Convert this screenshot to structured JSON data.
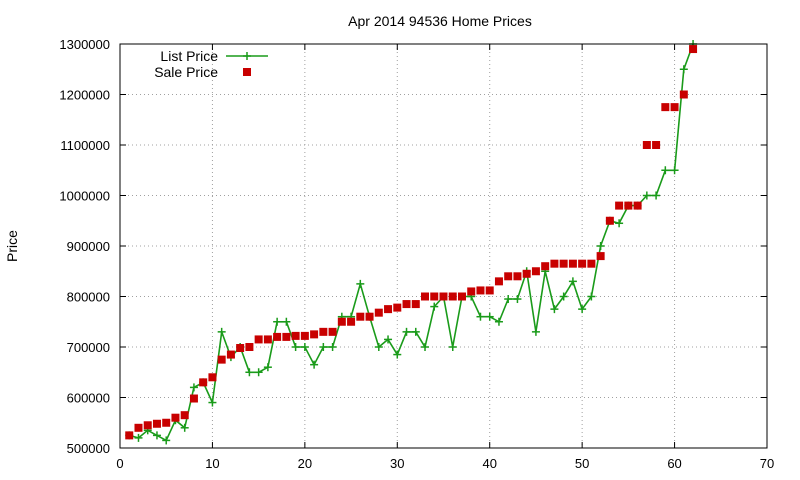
{
  "chart_data": {
    "type": "line",
    "title": "Apr 2014 94536 Home Prices",
    "ylabel": "Price",
    "xlabel": "",
    "xlim": [
      0,
      70
    ],
    "ylim": [
      500000,
      1300000
    ],
    "xticks": [
      0,
      10,
      20,
      30,
      40,
      50,
      60,
      70
    ],
    "yticks": [
      500000,
      600000,
      700000,
      800000,
      900000,
      1000000,
      1100000,
      1200000,
      1300000
    ],
    "grid": true,
    "legend_position": "top-left",
    "series": [
      {
        "name": "List Price",
        "style": "line+plus",
        "color": "#1a9b1a",
        "x": [
          1,
          2,
          3,
          4,
          5,
          6,
          7,
          8,
          9,
          10,
          11,
          12,
          13,
          14,
          15,
          16,
          17,
          18,
          19,
          20,
          21,
          22,
          23,
          24,
          25,
          26,
          27,
          28,
          29,
          30,
          31,
          32,
          33,
          34,
          35,
          36,
          37,
          38,
          39,
          40,
          41,
          42,
          43,
          44,
          45,
          46,
          47,
          48,
          49,
          50,
          51,
          52,
          53,
          54,
          55,
          56,
          57,
          58,
          59,
          60,
          61,
          62
        ],
        "values": [
          525000,
          520000,
          535000,
          525000,
          515000,
          555000,
          540000,
          620000,
          630000,
          590000,
          730000,
          680000,
          700000,
          650000,
          650000,
          660000,
          750000,
          750000,
          700000,
          700000,
          665000,
          700000,
          700000,
          760000,
          760000,
          825000,
          760000,
          700000,
          715000,
          685000,
          730000,
          730000,
          700000,
          780000,
          800000,
          700000,
          800000,
          800000,
          760000,
          760000,
          750000,
          795000,
          795000,
          850000,
          730000,
          850000,
          775000,
          800000,
          830000,
          775000,
          800000,
          900000,
          950000,
          945000,
          980000,
          980000,
          1000000,
          1000000,
          1050000,
          1050000,
          1250000,
          1300000
        ]
      },
      {
        "name": "Sale Price",
        "style": "square",
        "color": "#c80000",
        "x": [
          1,
          2,
          3,
          4,
          5,
          6,
          7,
          8,
          9,
          10,
          11,
          12,
          13,
          14,
          15,
          16,
          17,
          18,
          19,
          20,
          21,
          22,
          23,
          24,
          25,
          26,
          27,
          28,
          29,
          30,
          31,
          32,
          33,
          34,
          35,
          36,
          37,
          38,
          39,
          40,
          41,
          42,
          43,
          44,
          45,
          46,
          47,
          48,
          49,
          50,
          51,
          52,
          53,
          54,
          55,
          56,
          57,
          58,
          59,
          60,
          61,
          62
        ],
        "values": [
          525000,
          540000,
          545000,
          548000,
          550000,
          560000,
          565000,
          598000,
          630000,
          640000,
          675000,
          685000,
          698000,
          700000,
          715000,
          715000,
          720000,
          720000,
          722000,
          722000,
          725000,
          730000,
          730000,
          750000,
          750000,
          760000,
          760000,
          768000,
          775000,
          778000,
          785000,
          785000,
          800000,
          800000,
          800000,
          800000,
          800000,
          810000,
          812000,
          812000,
          830000,
          840000,
          840000,
          845000,
          850000,
          860000,
          865000,
          865000,
          865000,
          865000,
          865000,
          880000,
          950000,
          980000,
          980000,
          980000,
          1100000,
          1100000,
          1175000,
          1175000,
          1200000,
          1290000
        ]
      }
    ]
  }
}
